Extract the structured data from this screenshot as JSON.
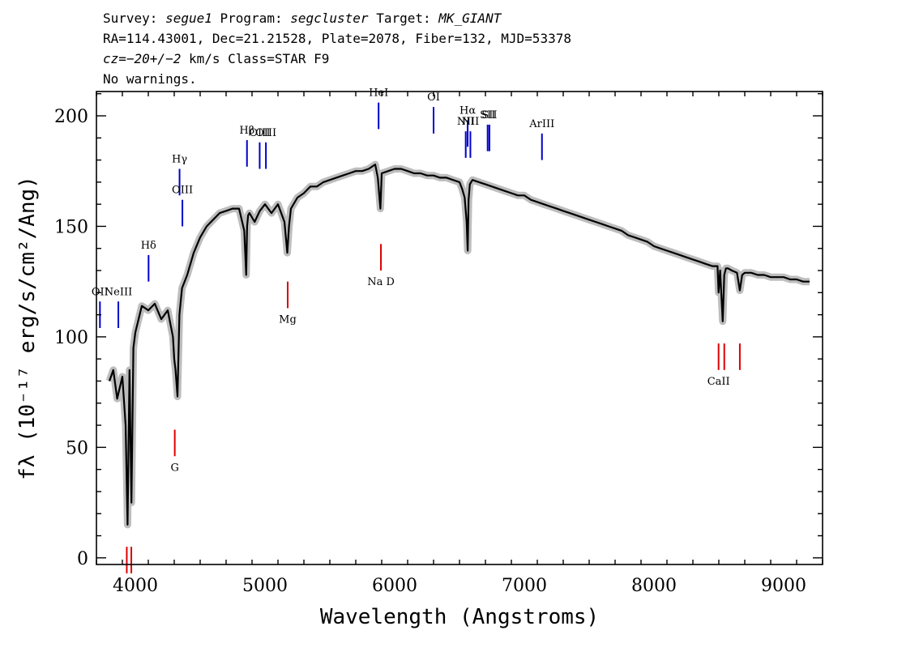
{
  "header": {
    "line1": {
      "survey_label": "Survey:",
      "survey": "segue1",
      "program_label": "Program:",
      "program": "segcluster",
      "target_label": "Target:",
      "target": "MK_GIANT"
    },
    "line2": "RA=114.43001, Dec=21.21528, Plate=2078, Fiber=132, MJD=53378",
    "line3": {
      "cz": "cz=−20+/−2",
      "rest": " km/s Class=STAR F9"
    },
    "line4": "No warnings."
  },
  "colors": {
    "spectrum": "#000000",
    "error_band": "#bdbdbd",
    "emission": "#0000cc",
    "absorption": "#dd0000",
    "markers": "#000000"
  },
  "chart_data": {
    "type": "line",
    "title": "",
    "xlabel": "Wavelength (Angstroms)",
    "ylabel": "fλ (10⁻¹⁷ erg/s/cm²/Ang)",
    "xlim": [
      3700,
      9300
    ],
    "ylim": [
      -3,
      211
    ],
    "xticks": [
      4000,
      5000,
      6000,
      7000,
      8000,
      9000
    ],
    "yticks": [
      0,
      50,
      100,
      150,
      200
    ],
    "grid": false,
    "series": [
      {
        "x": [
          3800,
          3830,
          3860,
          3900,
          3925,
          3940,
          3955,
          3970,
          3985,
          4000,
          4050,
          4100,
          4150,
          4200,
          4250,
          4290,
          4300,
          4310,
          4325,
          4340,
          4360,
          4400,
          4450,
          4500,
          4550,
          4600,
          4650,
          4700,
          4750,
          4800,
          4840,
          4855,
          4862,
          4870,
          4880,
          4920,
          4960,
          5000,
          5050,
          5100,
          5150,
          5172,
          5185,
          5200,
          5250,
          5300,
          5350,
          5400,
          5450,
          5500,
          5550,
          5600,
          5650,
          5700,
          5750,
          5800,
          5850,
          5870,
          5890,
          5900,
          5950,
          6000,
          6050,
          6100,
          6150,
          6200,
          6250,
          6300,
          6350,
          6400,
          6450,
          6500,
          6520,
          6540,
          6555,
          6563,
          6570,
          6580,
          6600,
          6650,
          6700,
          6750,
          6800,
          6850,
          6900,
          6950,
          7000,
          7050,
          7100,
          7150,
          7200,
          7250,
          7300,
          7350,
          7400,
          7450,
          7500,
          7550,
          7600,
          7650,
          7700,
          7750,
          7800,
          7850,
          7900,
          7950,
          8000,
          8050,
          8100,
          8150,
          8200,
          8250,
          8300,
          8350,
          8400,
          8450,
          8490,
          8498,
          8510,
          8530,
          8542,
          8555,
          8570,
          8600,
          8640,
          8662,
          8680,
          8700,
          8750,
          8800,
          8850,
          8900,
          8950,
          9000,
          9050,
          9100,
          9150,
          9200
        ],
        "y": [
          80,
          85,
          72,
          82,
          60,
          15,
          85,
          25,
          95,
          102,
          114,
          112,
          115,
          108,
          112,
          100,
          90,
          85,
          73,
          110,
          122,
          128,
          138,
          145,
          150,
          153,
          156,
          157,
          158,
          158,
          148,
          128,
          150,
          155,
          156,
          152,
          157,
          160,
          156,
          160,
          152,
          138,
          150,
          158,
          163,
          165,
          168,
          168,
          170,
          171,
          172,
          173,
          174,
          175,
          175,
          176,
          178,
          172,
          158,
          174,
          175,
          176,
          176,
          175,
          174,
          174,
          173,
          173,
          172,
          172,
          171,
          170,
          167,
          163,
          152,
          139,
          162,
          169,
          171,
          170,
          169,
          168,
          167,
          166,
          165,
          164,
          164,
          162,
          161,
          160,
          159,
          158,
          157,
          156,
          155,
          154,
          153,
          152,
          151,
          150,
          149,
          148,
          146,
          145,
          144,
          143,
          141,
          140,
          139,
          138,
          137,
          136,
          135,
          134,
          133,
          132,
          132,
          120,
          130,
          107,
          128,
          131,
          131,
          130,
          129,
          121,
          128,
          129,
          129,
          128,
          128,
          127,
          127,
          127,
          126,
          126,
          125,
          125
        ]
      }
    ],
    "emission_lines": [
      {
        "label": "OII",
        "x": 3727,
        "y": 104
      },
      {
        "label": "NeIII",
        "x": 3869,
        "y": 104
      },
      {
        "label": "Hδ",
        "x": 4102,
        "y": 125
      },
      {
        "label": "Hγ",
        "x": 4341,
        "y": 164
      },
      {
        "label": "OIII",
        "x": 4363,
        "y": 150
      },
      {
        "label": "Hβ",
        "x": 4861,
        "y": 177
      },
      {
        "label": "OIII",
        "x": 4959,
        "y": 176
      },
      {
        "label": "OIII",
        "x": 5007,
        "y": 176
      },
      {
        "label": "HeI",
        "x": 5876,
        "y": 194
      },
      {
        "label": "OI",
        "x": 6300,
        "y": 192
      },
      {
        "label": "NII",
        "x": 6548,
        "y": 181
      },
      {
        "label": "Hα",
        "x": 6563,
        "y": 186
      },
      {
        "label": "NII",
        "x": 6584,
        "y": 181
      },
      {
        "label": "SII",
        "x": 6717,
        "y": 184
      },
      {
        "label": "SII",
        "x": 6731,
        "y": 184
      },
      {
        "label": "ArIII",
        "x": 7136,
        "y": 180
      }
    ],
    "absorption_lines": [
      {
        "label": "",
        "x": 3934,
        "y": 5
      },
      {
        "label": "",
        "x": 3969,
        "y": 5
      },
      {
        "label": "G",
        "x": 4304,
        "y": 58
      },
      {
        "label": "Mg",
        "x": 5175,
        "y": 125
      },
      {
        "label": "Na D",
        "x": 5894,
        "y": 142
      },
      {
        "label": "CaII",
        "x": 8498,
        "y": 97
      },
      {
        "label": "",
        "x": 8542,
        "y": 97
      },
      {
        "label": "",
        "x": 8662,
        "y": 97
      }
    ],
    "markers": {
      "CaII": "CaII"
    }
  }
}
